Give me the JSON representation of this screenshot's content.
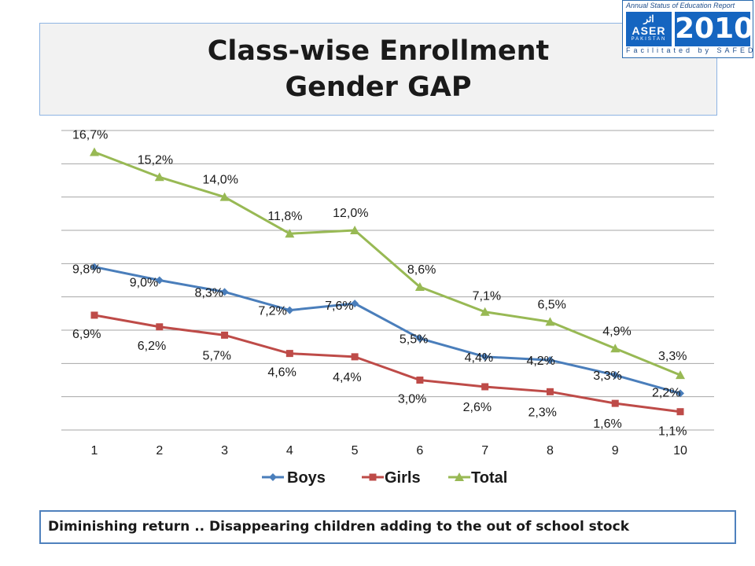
{
  "header": {
    "title_line1": "Class-wise Enrollment",
    "title_line2": "Gender GAP"
  },
  "logo": {
    "top_text": "Annual Status of Education Report",
    "name": "ASER",
    "arabic": "اثر",
    "country": "PAKISTAN",
    "year": "2010",
    "facilitated": "Facilitated by SAFED"
  },
  "footer": {
    "text": "Diminishing return ..  Disappearing children  adding to the out of school stock"
  },
  "chart_data": {
    "type": "line",
    "x": [
      "1",
      "2",
      "3",
      "4",
      "5",
      "6",
      "7",
      "8",
      "9",
      "10"
    ],
    "series": [
      {
        "name": "Boys",
        "values": [
          9.8,
          9.0,
          8.3,
          7.2,
          7.6,
          5.5,
          4.4,
          4.2,
          3.3,
          2.2
        ],
        "labels": [
          "9,8%",
          "9,0%",
          "8,3%",
          "7,2%",
          "7,6%",
          "5,5%",
          "4,4%",
          "4,2%",
          "3,3%",
          "2,2%"
        ],
        "color": "#4a7ebb",
        "marker": "diamond"
      },
      {
        "name": "Girls",
        "values": [
          6.9,
          6.2,
          5.7,
          4.6,
          4.4,
          3.0,
          2.6,
          2.3,
          1.6,
          1.1
        ],
        "labels": [
          "6,9%",
          "6,2%",
          "5,7%",
          "4,6%",
          "4,4%",
          "3,0%",
          "2,6%",
          "2,3%",
          "1,6%",
          "1,1%"
        ],
        "color": "#be4b48",
        "marker": "square"
      },
      {
        "name": "Total",
        "values": [
          16.7,
          15.2,
          14.0,
          11.8,
          12.0,
          8.6,
          7.1,
          6.5,
          4.9,
          3.3
        ],
        "labels": [
          "16,7%",
          "15,2%",
          "14,0%",
          "11,8%",
          "12,0%",
          "8,6%",
          "7,1%",
          "6,5%",
          "4,9%",
          "3,3%"
        ],
        "color": "#98b954",
        "marker": "triangle"
      }
    ],
    "ylim": [
      0,
      18
    ],
    "grid": true,
    "legend_position": "bottom"
  }
}
